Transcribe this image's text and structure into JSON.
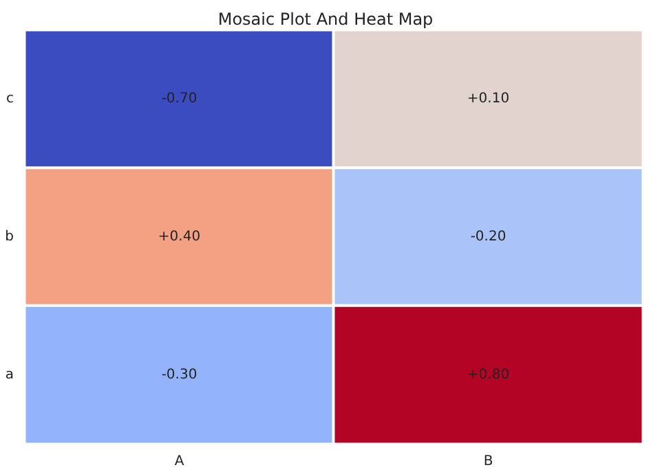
{
  "chart_data": {
    "type": "heatmap",
    "title": "Mosaic Plot And Heat Map",
    "categories": [
      "A",
      "B"
    ],
    "y_categories": [
      "c",
      "b",
      "a"
    ],
    "cells": [
      [
        -0.7,
        0.1
      ],
      [
        0.4,
        -0.2
      ],
      [
        -0.3,
        0.8
      ]
    ],
    "cell_labels": [
      [
        "-0.70",
        "+0.10"
      ],
      [
        "+0.40",
        "-0.20"
      ],
      [
        "-0.30",
        "+0.80"
      ]
    ]
  }
}
